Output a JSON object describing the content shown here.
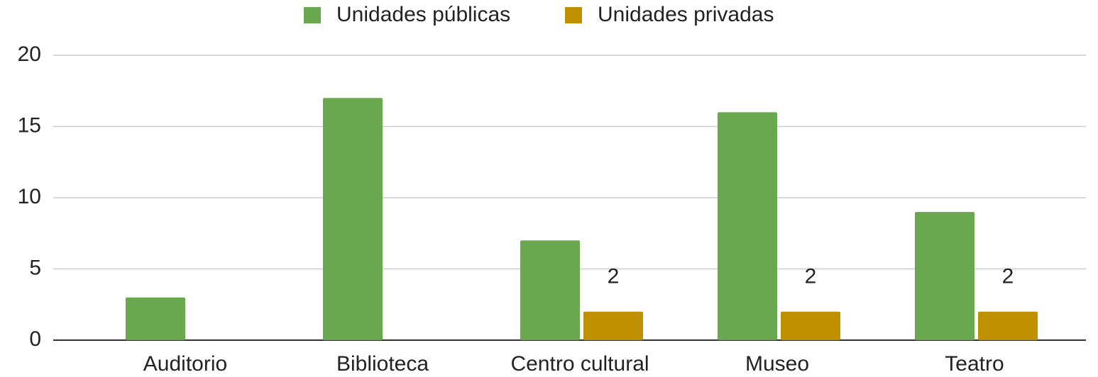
{
  "chart_data": {
    "type": "bar",
    "categories": [
      "Auditorio",
      "Biblioteca",
      "Centro cultural",
      "Museo",
      "Teatro"
    ],
    "series": [
      {
        "name": "Unidades públicas",
        "color": "#6aa84f",
        "values": [
          3,
          17,
          7,
          16,
          9
        ]
      },
      {
        "name": "Unidades privadas",
        "color": "#bf9000",
        "values": [
          null,
          null,
          2,
          2,
          2
        ],
        "data_labels": true
      }
    ],
    "ylim": [
      0,
      20
    ],
    "yticks": [
      0,
      5,
      10,
      15,
      20
    ],
    "grid": true,
    "legend": "top"
  }
}
